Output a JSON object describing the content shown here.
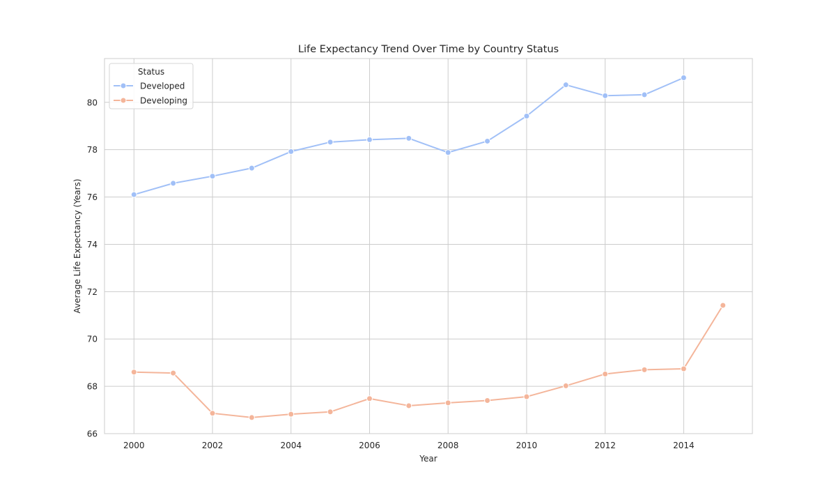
{
  "chart_data": {
    "type": "line",
    "title": "Life Expectancy Trend Over Time by Country Status",
    "xlabel": "Year",
    "ylabel": "Average Life Expectancy (Years)",
    "xlim": [
      1999.25,
      2015.75
    ],
    "ylim": [
      66,
      81.85
    ],
    "xticks": [
      2000,
      2002,
      2004,
      2006,
      2008,
      2010,
      2012,
      2014
    ],
    "yticks": [
      66,
      68,
      70,
      72,
      74,
      76,
      78,
      80
    ],
    "grid": true,
    "legend": {
      "title": "Status",
      "placement": "top-left"
    },
    "series": [
      {
        "name": "Developed",
        "color": "#a1c0f7",
        "x": [
          2000,
          2001,
          2002,
          2003,
          2004,
          2005,
          2006,
          2007,
          2008,
          2009,
          2010,
          2011,
          2012,
          2013,
          2014
        ],
        "y": [
          76.1,
          76.58,
          76.88,
          77.22,
          77.92,
          78.32,
          78.42,
          78.48,
          77.88,
          78.36,
          79.42,
          80.74,
          80.28,
          80.32,
          81.04
        ]
      },
      {
        "name": "Developing",
        "color": "#f4b59a",
        "x": [
          2000,
          2001,
          2002,
          2003,
          2004,
          2005,
          2006,
          2007,
          2008,
          2009,
          2010,
          2011,
          2012,
          2013,
          2014,
          2015
        ],
        "y": [
          68.6,
          68.56,
          66.86,
          66.68,
          66.82,
          66.92,
          67.48,
          67.18,
          67.3,
          67.4,
          67.56,
          68.02,
          68.52,
          68.7,
          68.74,
          71.42
        ]
      }
    ]
  }
}
